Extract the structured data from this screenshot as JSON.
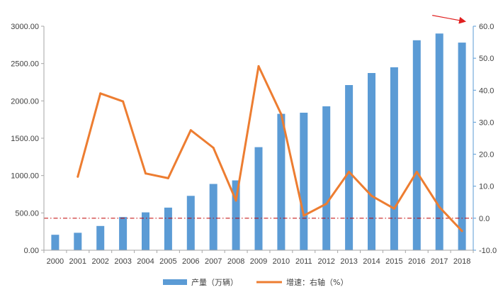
{
  "chart_data": {
    "type": "bar",
    "title": "",
    "categories": [
      "2000",
      "2001",
      "2002",
      "2003",
      "2004",
      "2005",
      "2006",
      "2007",
      "2008",
      "2009",
      "2010",
      "2011",
      "2012",
      "2013",
      "2014",
      "2015",
      "2016",
      "2017",
      "2018"
    ],
    "series": [
      {
        "name": "产量（万辆）",
        "type": "bar",
        "axis": "left",
        "color": "#5b9bd5",
        "values": [
          207,
          234,
          325,
          444,
          507,
          571,
          728,
          888,
          935,
          1380,
          1827,
          1842,
          1927,
          2212,
          2373,
          2450,
          2812,
          2902,
          2781
        ]
      },
      {
        "name": "增速：右轴（%）",
        "type": "line",
        "axis": "right",
        "color": "#ed7d31",
        "values": [
          null,
          13.0,
          39.0,
          36.5,
          14.0,
          12.5,
          27.5,
          22.0,
          5.5,
          47.5,
          32.5,
          0.8,
          4.5,
          14.5,
          7.0,
          3.0,
          14.5,
          3.5,
          -4.0
        ]
      }
    ],
    "y_left": {
      "min": 0,
      "max": 3000,
      "step": 500,
      "tick_labels": [
        "0.00",
        "500.00",
        "1000.00",
        "1500.00",
        "2000.00",
        "2500.00",
        "3000.00"
      ],
      "color": "#404040"
    },
    "y_right": {
      "min": -10,
      "max": 60,
      "step": 10,
      "tick_labels": [
        "-10.0",
        "0.0",
        "10.0",
        "20.0",
        "30.0",
        "40.0",
        "50.0",
        "60.0"
      ],
      "color": "#404040"
    },
    "reference_line": {
      "axis": "right",
      "value": 0,
      "color": "#c00000",
      "style": "dash-dot"
    },
    "annotation_arrow": {
      "color": "#e02020",
      "from": {
        "category": "2017",
        "value": 2880
      },
      "to": {
        "category": "2018",
        "value": 2780
      }
    },
    "grid": false,
    "legend": {
      "position": "bottom",
      "items": [
        "产量（万辆）",
        "增速：右轴（%）"
      ]
    }
  }
}
